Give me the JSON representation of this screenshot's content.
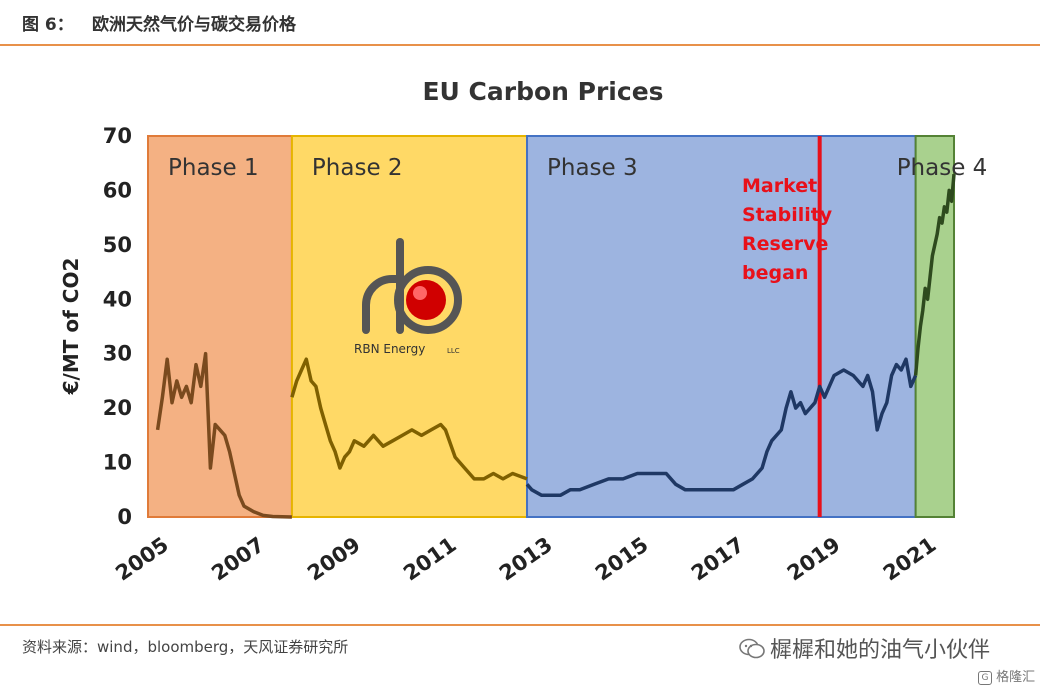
{
  "header": {
    "figure_number": "图 6：",
    "title": "欧洲天然气价与碳交易价格"
  },
  "footer": {
    "source": "资料来源：wind，bloomberg，天风证券研究所"
  },
  "watermark": {
    "text": "樨樨和她的油气小伙伴",
    "logo_text": "格隆汇"
  },
  "chart_data": {
    "type": "line",
    "title": "EU Carbon Prices",
    "ylabel": "€/MT of CO2",
    "xlabel": "",
    "xlim": [
      2005.0,
      2022.3
    ],
    "ylim": [
      0,
      70
    ],
    "yticks": [
      0,
      10,
      20,
      30,
      40,
      50,
      60,
      70
    ],
    "xticks": [
      "2005",
      "2007",
      "2009",
      "2011",
      "2013",
      "2015",
      "2017",
      "2019",
      "2021"
    ],
    "grid": false,
    "phases": [
      {
        "label": "Phase 1",
        "start": 2005.0,
        "end": 2008.0,
        "fill": "#f4b183",
        "stroke": "#e07b39"
      },
      {
        "label": "Phase 2",
        "start": 2008.0,
        "end": 2012.9,
        "fill": "#ffd966",
        "stroke": "#e6b400"
      },
      {
        "label": "Phase 3",
        "start": 2012.9,
        "end": 2021.0,
        "fill": "#9db4e0",
        "stroke": "#4472c4"
      },
      {
        "label": "Phase 4",
        "start": 2021.0,
        "end": 2021.8,
        "fill": "#a9d18e",
        "stroke": "#548235"
      }
    ],
    "event": {
      "date": 2019.0,
      "label_lines": [
        "Market",
        "Stability",
        "Reserve",
        "began"
      ],
      "color": "#e8101a"
    },
    "logo": {
      "text": "RBN Energy",
      "suffix": "LLC"
    },
    "series": [
      {
        "segments": [
          {
            "color": "#7a4a1e",
            "points": [
              [
                2005.2,
                16
              ],
              [
                2005.3,
                22
              ],
              [
                2005.4,
                29
              ],
              [
                2005.5,
                21
              ],
              [
                2005.6,
                25
              ],
              [
                2005.7,
                22
              ],
              [
                2005.8,
                24
              ],
              [
                2005.9,
                21
              ],
              [
                2006.0,
                28
              ],
              [
                2006.1,
                24
              ],
              [
                2006.2,
                30
              ],
              [
                2006.3,
                9
              ],
              [
                2006.4,
                17
              ],
              [
                2006.5,
                16
              ],
              [
                2006.6,
                15
              ],
              [
                2006.7,
                12
              ],
              [
                2006.8,
                8
              ],
              [
                2006.9,
                4
              ],
              [
                2007.0,
                2
              ],
              [
                2007.2,
                1
              ],
              [
                2007.4,
                0.3
              ],
              [
                2007.6,
                0.1
              ],
              [
                2007.8,
                0.05
              ],
              [
                2008.0,
                0
              ]
            ]
          },
          {
            "color": "#7f6000",
            "points": [
              [
                2008.0,
                22
              ],
              [
                2008.1,
                25
              ],
              [
                2008.2,
                27
              ],
              [
                2008.3,
                29
              ],
              [
                2008.4,
                25
              ],
              [
                2008.5,
                24
              ],
              [
                2008.6,
                20
              ],
              [
                2008.7,
                17
              ],
              [
                2008.8,
                14
              ],
              [
                2008.9,
                12
              ],
              [
                2009.0,
                9
              ],
              [
                2009.1,
                11
              ],
              [
                2009.2,
                12
              ],
              [
                2009.3,
                14
              ],
              [
                2009.5,
                13
              ],
              [
                2009.7,
                15
              ],
              [
                2009.9,
                13
              ],
              [
                2010.1,
                14
              ],
              [
                2010.3,
                15
              ],
              [
                2010.5,
                16
              ],
              [
                2010.7,
                15
              ],
              [
                2010.9,
                16
              ],
              [
                2011.1,
                17
              ],
              [
                2011.2,
                16
              ],
              [
                2011.4,
                11
              ],
              [
                2011.6,
                9
              ],
              [
                2011.8,
                7
              ],
              [
                2012.0,
                7
              ],
              [
                2012.2,
                8
              ],
              [
                2012.4,
                7
              ],
              [
                2012.6,
                8
              ],
              [
                2012.9,
                7
              ]
            ]
          },
          {
            "color": "#1f3864",
            "points": [
              [
                2012.9,
                6
              ],
              [
                2013.0,
                5
              ],
              [
                2013.2,
                4
              ],
              [
                2013.4,
                4
              ],
              [
                2013.6,
                4
              ],
              [
                2013.8,
                5
              ],
              [
                2014.0,
                5
              ],
              [
                2014.3,
                6
              ],
              [
                2014.6,
                7
              ],
              [
                2014.9,
                7
              ],
              [
                2015.2,
                8
              ],
              [
                2015.5,
                8
              ],
              [
                2015.8,
                8
              ],
              [
                2016.0,
                6
              ],
              [
                2016.2,
                5
              ],
              [
                2016.5,
                5
              ],
              [
                2016.8,
                5
              ],
              [
                2017.0,
                5
              ],
              [
                2017.2,
                5
              ],
              [
                2017.4,
                6
              ],
              [
                2017.6,
                7
              ],
              [
                2017.8,
                9
              ],
              [
                2017.9,
                12
              ],
              [
                2018.0,
                14
              ],
              [
                2018.2,
                16
              ],
              [
                2018.3,
                20
              ],
              [
                2018.4,
                23
              ],
              [
                2018.5,
                20
              ],
              [
                2018.6,
                21
              ],
              [
                2018.7,
                19
              ],
              [
                2018.9,
                21
              ],
              [
                2019.0,
                24
              ],
              [
                2019.1,
                22
              ],
              [
                2019.3,
                26
              ],
              [
                2019.5,
                27
              ],
              [
                2019.7,
                26
              ],
              [
                2019.9,
                24
              ],
              [
                2020.0,
                26
              ],
              [
                2020.1,
                23
              ],
              [
                2020.2,
                16
              ],
              [
                2020.3,
                19
              ],
              [
                2020.4,
                21
              ],
              [
                2020.5,
                26
              ],
              [
                2020.6,
                28
              ],
              [
                2020.7,
                27
              ],
              [
                2020.8,
                29
              ],
              [
                2020.9,
                24
              ],
              [
                2021.0,
                26
              ]
            ]
          },
          {
            "color": "#2e4a1e",
            "points": [
              [
                2021.0,
                26
              ],
              [
                2021.05,
                31
              ],
              [
                2021.1,
                35
              ],
              [
                2021.15,
                38
              ],
              [
                2021.2,
                42
              ],
              [
                2021.25,
                40
              ],
              [
                2021.3,
                44
              ],
              [
                2021.35,
                48
              ],
              [
                2021.4,
                50
              ],
              [
                2021.45,
                52
              ],
              [
                2021.5,
                55
              ],
              [
                2021.55,
                54
              ],
              [
                2021.6,
                57
              ],
              [
                2021.65,
                56
              ],
              [
                2021.7,
                60
              ],
              [
                2021.75,
                58
              ],
              [
                2021.8,
                63
              ]
            ]
          }
        ]
      }
    ]
  }
}
